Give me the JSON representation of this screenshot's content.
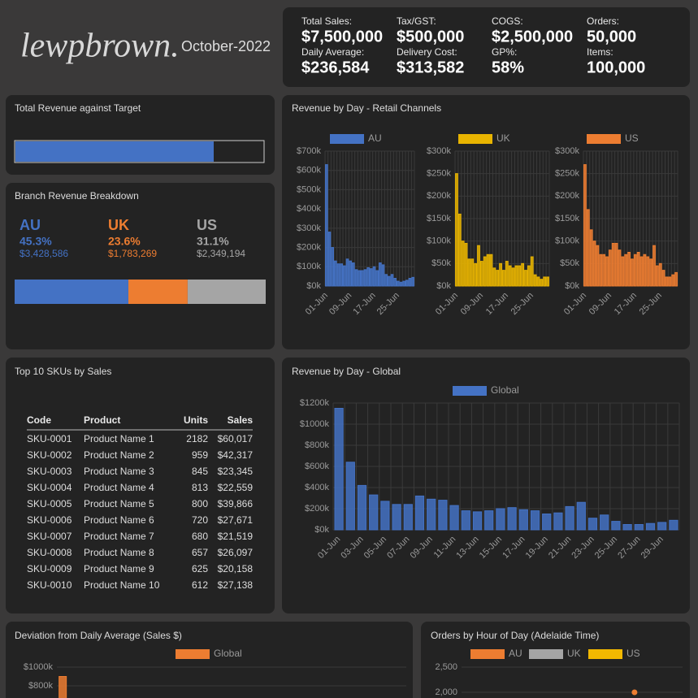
{
  "header": {
    "logo": "lewpbrown.",
    "period": "October-2022"
  },
  "kpis": [
    {
      "label": "Total Sales:",
      "value": "$7,500,000"
    },
    {
      "label": "Tax/GST:",
      "value": "$500,000"
    },
    {
      "label": "COGS:",
      "value": "$2,500,000"
    },
    {
      "label": "Orders:",
      "value": "50,000"
    },
    {
      "label": "Daily Average:",
      "value": "$236,584"
    },
    {
      "label": "Delivery Cost:",
      "value": "$313,582"
    },
    {
      "label": "GP%:",
      "value": "58%"
    },
    {
      "label": "Items:",
      "value": "100,000"
    }
  ],
  "target": {
    "title": "Total Revenue against Target",
    "value": 80,
    "xlim": [
      0,
      100
    ],
    "color": "#4472c4"
  },
  "branch": {
    "title": "Branch Revenue Breakdown",
    "branches": [
      {
        "name": "AU",
        "share": 45.3,
        "share_label": "45.3%",
        "amount": "$3,428,586",
        "color": "#4472c4"
      },
      {
        "name": "UK",
        "share": 23.6,
        "share_label": "23.6%",
        "amount": "$1,783,269",
        "color": "#ed7d31"
      },
      {
        "name": "US",
        "share": 31.1,
        "share_label": "31.1%",
        "amount": "$2,349,194",
        "color": "#a5a5a5"
      }
    ]
  },
  "table": {
    "title": "Top 10 SKUs by Sales",
    "columns": [
      "Code",
      "Product",
      "Units",
      "Sales"
    ],
    "rows": [
      [
        "SKU-0001",
        "Product Name 1",
        2182,
        "$60,017"
      ],
      [
        "SKU-0002",
        "Product Name 2",
        959,
        "$42,317"
      ],
      [
        "SKU-0003",
        "Product Name 3",
        845,
        "$23,345"
      ],
      [
        "SKU-0004",
        "Product Name 4",
        813,
        "$22,559"
      ],
      [
        "SKU-0005",
        "Product Name 5",
        800,
        "$39,866"
      ],
      [
        "SKU-0006",
        "Product Name 6",
        720,
        "$27,671"
      ],
      [
        "SKU-0007",
        "Product Name 7",
        680,
        "$21,519"
      ],
      [
        "SKU-0008",
        "Product Name 8",
        657,
        "$26,097"
      ],
      [
        "SKU-0009",
        "Product Name 9",
        625,
        "$20,158"
      ],
      [
        "SKU-0010",
        "Product Name 10",
        612,
        "$27,138"
      ]
    ]
  },
  "chart_data": [
    {
      "type": "bar",
      "facet": true,
      "title": "Revenue by Day - Retail Channels",
      "categories": [
        "01-Jun",
        null,
        null,
        null,
        null,
        null,
        null,
        null,
        "09-Jun",
        null,
        null,
        null,
        null,
        null,
        null,
        null,
        "17-Jun",
        null,
        null,
        null,
        null,
        null,
        null,
        null,
        "25-Jun",
        null,
        null,
        null,
        null,
        null
      ],
      "series": [
        {
          "name": "AU",
          "color": "#4472c4",
          "ylim": [
            0,
            700000
          ],
          "yticks": [
            {
              "value": 0,
              "label": "$0k"
            },
            {
              "value": 100000,
              "label": "$100k"
            },
            {
              "value": 200000,
              "label": "$200k"
            },
            {
              "value": 300000,
              "label": "$300k"
            },
            {
              "value": 400000,
              "label": "$400k"
            },
            {
              "value": 500000,
              "label": "$500k"
            },
            {
              "value": 600000,
              "label": "$600k"
            },
            {
              "value": 700000,
              "label": "$700k"
            }
          ],
          "values": [
            630000,
            280000,
            200000,
            130000,
            115000,
            115000,
            105000,
            140000,
            130000,
            120000,
            85000,
            80000,
            80000,
            85000,
            95000,
            90000,
            100000,
            80000,
            120000,
            110000,
            60000,
            50000,
            60000,
            40000,
            25000,
            20000,
            25000,
            30000,
            40000,
            45000
          ]
        },
        {
          "name": "UK",
          "color": "#e8b400",
          "ylim": [
            0,
            300000
          ],
          "yticks": [
            {
              "value": 0,
              "label": "$0k"
            },
            {
              "value": 50000,
              "label": "$50k"
            },
            {
              "value": 100000,
              "label": "$100k"
            },
            {
              "value": 150000,
              "label": "$150k"
            },
            {
              "value": 200000,
              "label": "$200k"
            },
            {
              "value": 250000,
              "label": "$250k"
            },
            {
              "value": 300000,
              "label": "$300k"
            }
          ],
          "values": [
            250000,
            160000,
            100000,
            95000,
            60000,
            60000,
            50000,
            90000,
            55000,
            65000,
            70000,
            70000,
            40000,
            35000,
            50000,
            35000,
            55000,
            45000,
            40000,
            45000,
            45000,
            50000,
            35000,
            45000,
            65000,
            25000,
            20000,
            15000,
            20000,
            20000
          ]
        },
        {
          "name": "US",
          "color": "#ed7d31",
          "ylim": [
            0,
            300000
          ],
          "yticks": [
            {
              "value": 0,
              "label": "$0k"
            },
            {
              "value": 50000,
              "label": "$50k"
            },
            {
              "value": 100000,
              "label": "$100k"
            },
            {
              "value": 150000,
              "label": "$150k"
            },
            {
              "value": 200000,
              "label": "$200k"
            },
            {
              "value": 250000,
              "label": "$250k"
            },
            {
              "value": 300000,
              "label": "$300k"
            }
          ],
          "values": [
            270000,
            170000,
            125000,
            100000,
            90000,
            70000,
            70000,
            65000,
            80000,
            95000,
            95000,
            80000,
            65000,
            70000,
            75000,
            60000,
            70000,
            75000,
            65000,
            70000,
            65000,
            60000,
            90000,
            45000,
            50000,
            35000,
            20000,
            20000,
            25000,
            30000
          ]
        }
      ]
    },
    {
      "type": "bar",
      "title": "Revenue by Day - Global",
      "categories": [
        "01-Jun",
        null,
        "03-Jun",
        null,
        "05-Jun",
        null,
        "07-Jun",
        null,
        "09-Jun",
        null,
        "11-Jun",
        null,
        "13-Jun",
        null,
        "15-Jun",
        null,
        "17-Jun",
        null,
        "19-Jun",
        null,
        "21-Jun",
        null,
        "23-Jun",
        null,
        "25-Jun",
        null,
        "27-Jun",
        null,
        "29-Jun",
        null
      ],
      "ylim": [
        0,
        1200000
      ],
      "yticks": [
        {
          "value": 0,
          "label": "$0k"
        },
        {
          "value": 200000,
          "label": "$200k"
        },
        {
          "value": 400000,
          "label": "$400k"
        },
        {
          "value": 600000,
          "label": "$600k"
        },
        {
          "value": 800000,
          "label": "$800k"
        },
        {
          "value": 1000000,
          "label": "$1000k"
        },
        {
          "value": 1200000,
          "label": "$1200k"
        }
      ],
      "series": [
        {
          "name": "Global",
          "color": "#4472c4",
          "values": [
            1150000,
            640000,
            420000,
            330000,
            270000,
            240000,
            240000,
            320000,
            290000,
            280000,
            230000,
            180000,
            170000,
            180000,
            200000,
            210000,
            190000,
            180000,
            150000,
            160000,
            220000,
            260000,
            110000,
            140000,
            80000,
            50000,
            50000,
            60000,
            70000,
            90000
          ]
        }
      ]
    },
    {
      "type": "bar",
      "title": "Deviation from Daily Average (Sales $)",
      "xlim": [
        0.5,
        30.5
      ],
      "ylim": [
        600000,
        1000000
      ],
      "yticks": [
        {
          "value": 1000000,
          "label": "$1000k"
        },
        {
          "value": 800000,
          "label": "$800k"
        }
      ],
      "series": [
        {
          "name": "Global",
          "color": "#ed7d31",
          "x": [
            1
          ],
          "values": [
            900000
          ]
        }
      ]
    },
    {
      "type": "line",
      "title": "Orders by Hour of Day (Adelaide Time)",
      "xlim": [
        0,
        23
      ],
      "ylim": [
        1500,
        2500
      ],
      "yticks": [
        {
          "value": 2500,
          "label": "2,500"
        },
        {
          "value": 2000,
          "label": "2,000"
        }
      ],
      "series": [
        {
          "name": "AU",
          "color": "#ed7d31",
          "x": [
            18
          ],
          "values": [
            2000
          ]
        },
        {
          "name": "UK",
          "color": "#a5a5a5",
          "x": [],
          "values": []
        },
        {
          "name": "US",
          "color": "#f2b800",
          "x": [],
          "values": []
        }
      ]
    }
  ]
}
